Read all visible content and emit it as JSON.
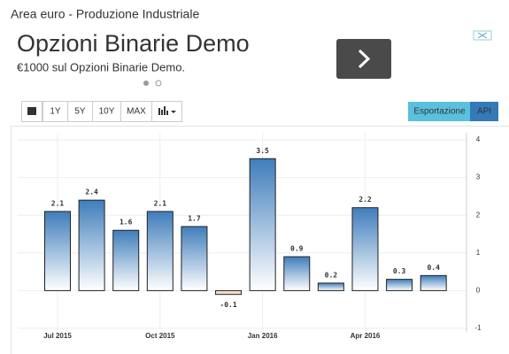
{
  "header": {
    "title": "Area euro - Produzione Industriale"
  },
  "ad": {
    "headline": "Opzioni Binarie Demo",
    "text": "€1000 sul Opzioni Binarie Demo."
  },
  "toolbar": {
    "ranges": [
      "1Y",
      "5Y",
      "10Y",
      "MAX"
    ],
    "export": "Esportazione",
    "api": "API"
  },
  "chart_data": {
    "type": "bar",
    "categories": [
      "Jul 2015",
      null,
      null,
      "Oct 2015",
      null,
      null,
      "Jan 2016",
      null,
      null,
      "Apr 2016",
      null,
      null
    ],
    "values": [
      2.1,
      2.4,
      1.6,
      2.1,
      1.7,
      -0.1,
      3.5,
      0.9,
      0.2,
      2.2,
      0.3,
      0.4
    ],
    "color": "#3f7dbb",
    "negative_color": "#f3dfc8",
    "ylim": [
      -1,
      4
    ],
    "yticks": [
      -1,
      0,
      1,
      2,
      3,
      4
    ],
    "grid": true
  }
}
